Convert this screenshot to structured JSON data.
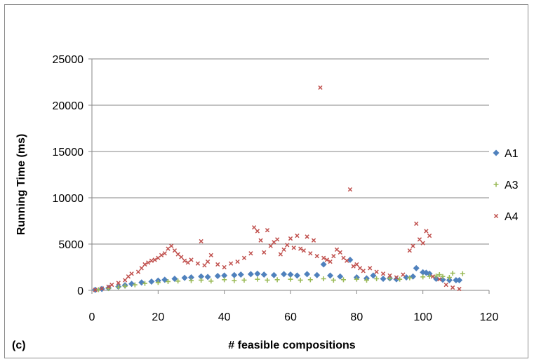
{
  "chart_data": {
    "type": "scatter",
    "panel_label": "(c)",
    "xlabel": "# feasible compositions",
    "ylabel": "Running Time (ms)",
    "xlim": [
      0,
      120
    ],
    "ylim": [
      0,
      25000
    ],
    "x_ticks": [
      "0",
      "20",
      "40",
      "60",
      "80",
      "100",
      "120"
    ],
    "y_ticks": [
      "0",
      "5000",
      "10000",
      "15000",
      "20000",
      "25000"
    ],
    "grid": "horizontal",
    "legend_position": "right",
    "series": [
      {
        "name": "A1",
        "marker": "diamond",
        "color": "#4f81bd",
        "points": [
          [
            1,
            60
          ],
          [
            3,
            150
          ],
          [
            5,
            250
          ],
          [
            8,
            400
          ],
          [
            10,
            550
          ],
          [
            12,
            700
          ],
          [
            15,
            850
          ],
          [
            18,
            950
          ],
          [
            20,
            1050
          ],
          [
            22,
            1150
          ],
          [
            25,
            1250
          ],
          [
            28,
            1350
          ],
          [
            30,
            1400
          ],
          [
            33,
            1500
          ],
          [
            35,
            1450
          ],
          [
            38,
            1550
          ],
          [
            40,
            1600
          ],
          [
            43,
            1650
          ],
          [
            45,
            1700
          ],
          [
            48,
            1750
          ],
          [
            50,
            1800
          ],
          [
            52,
            1700
          ],
          [
            55,
            1650
          ],
          [
            58,
            1750
          ],
          [
            60,
            1700
          ],
          [
            62,
            1600
          ],
          [
            65,
            1750
          ],
          [
            68,
            1650
          ],
          [
            70,
            2800
          ],
          [
            72,
            1600
          ],
          [
            75,
            1500
          ],
          [
            78,
            3300
          ],
          [
            80,
            1400
          ],
          [
            83,
            1300
          ],
          [
            85,
            1600
          ],
          [
            88,
            1250
          ],
          [
            90,
            1300
          ],
          [
            92,
            1200
          ],
          [
            95,
            1400
          ],
          [
            97,
            1500
          ],
          [
            98,
            2400
          ],
          [
            100,
            1950
          ],
          [
            101,
            1900
          ],
          [
            102,
            1800
          ],
          [
            104,
            1250
          ],
          [
            106,
            1150
          ],
          [
            108,
            1100
          ],
          [
            110,
            1100
          ],
          [
            111,
            1100
          ]
        ]
      },
      {
        "name": "A3",
        "marker": "plus",
        "color": "#9bbb59",
        "points": [
          [
            2,
            80
          ],
          [
            5,
            200
          ],
          [
            8,
            350
          ],
          [
            10,
            450
          ],
          [
            13,
            600
          ],
          [
            16,
            750
          ],
          [
            20,
            850
          ],
          [
            23,
            950
          ],
          [
            26,
            1000
          ],
          [
            30,
            1050
          ],
          [
            33,
            1100
          ],
          [
            36,
            1000
          ],
          [
            40,
            1150
          ],
          [
            43,
            1050
          ],
          [
            46,
            1100
          ],
          [
            50,
            1200
          ],
          [
            53,
            1100
          ],
          [
            56,
            1150
          ],
          [
            60,
            1200
          ],
          [
            63,
            1100
          ],
          [
            66,
            1150
          ],
          [
            70,
            1250
          ],
          [
            73,
            1100
          ],
          [
            76,
            1150
          ],
          [
            80,
            1200
          ],
          [
            83,
            1100
          ],
          [
            86,
            1250
          ],
          [
            90,
            1300
          ],
          [
            93,
            1200
          ],
          [
            96,
            1350
          ],
          [
            100,
            1450
          ],
          [
            102,
            1500
          ],
          [
            104,
            1550
          ],
          [
            105,
            1700
          ],
          [
            106,
            1500
          ],
          [
            108,
            1400
          ],
          [
            109,
            1850
          ],
          [
            112,
            1800
          ]
        ]
      },
      {
        "name": "A4",
        "marker": "x",
        "color": "#c0504d",
        "points": [
          [
            1,
            50
          ],
          [
            3,
            200
          ],
          [
            5,
            400
          ],
          [
            6,
            600
          ],
          [
            8,
            800
          ],
          [
            10,
            1100
          ],
          [
            11,
            1500
          ],
          [
            12,
            1800
          ],
          [
            14,
            2000
          ],
          [
            15,
            2400
          ],
          [
            16,
            2800
          ],
          [
            17,
            3000
          ],
          [
            18,
            3200
          ],
          [
            19,
            3300
          ],
          [
            20,
            3500
          ],
          [
            21,
            3800
          ],
          [
            22,
            4000
          ],
          [
            23,
            4500
          ],
          [
            24,
            4800
          ],
          [
            25,
            4300
          ],
          [
            26,
            3900
          ],
          [
            27,
            3600
          ],
          [
            28,
            3200
          ],
          [
            29,
            3000
          ],
          [
            30,
            3300
          ],
          [
            32,
            2900
          ],
          [
            33,
            5300
          ],
          [
            34,
            2700
          ],
          [
            35,
            3100
          ],
          [
            36,
            3800
          ],
          [
            38,
            2800
          ],
          [
            40,
            2500
          ],
          [
            42,
            2900
          ],
          [
            44,
            3100
          ],
          [
            46,
            3500
          ],
          [
            48,
            4000
          ],
          [
            49,
            6800
          ],
          [
            50,
            6400
          ],
          [
            51,
            5400
          ],
          [
            52,
            4100
          ],
          [
            53,
            6500
          ],
          [
            54,
            4800
          ],
          [
            55,
            5200
          ],
          [
            56,
            5500
          ],
          [
            57,
            3900
          ],
          [
            58,
            4400
          ],
          [
            59,
            4900
          ],
          [
            60,
            5600
          ],
          [
            61,
            4600
          ],
          [
            62,
            5900
          ],
          [
            63,
            4500
          ],
          [
            64,
            4300
          ],
          [
            65,
            5800
          ],
          [
            66,
            4000
          ],
          [
            67,
            5400
          ],
          [
            68,
            3700
          ],
          [
            69,
            21900
          ],
          [
            70,
            3500
          ],
          [
            71,
            3300
          ],
          [
            72,
            3100
          ],
          [
            73,
            3700
          ],
          [
            74,
            4400
          ],
          [
            75,
            4100
          ],
          [
            76,
            3500
          ],
          [
            77,
            3200
          ],
          [
            78,
            10900
          ],
          [
            79,
            2600
          ],
          [
            80,
            2800
          ],
          [
            81,
            2400
          ],
          [
            82,
            2100
          ],
          [
            84,
            2400
          ],
          [
            86,
            2000
          ],
          [
            88,
            1800
          ],
          [
            90,
            1600
          ],
          [
            92,
            1400
          ],
          [
            94,
            1700
          ],
          [
            96,
            4300
          ],
          [
            97,
            4800
          ],
          [
            98,
            7200
          ],
          [
            99,
            5500
          ],
          [
            100,
            5100
          ],
          [
            101,
            6400
          ],
          [
            102,
            5900
          ],
          [
            103,
            1500
          ],
          [
            105,
            1200
          ],
          [
            107,
            600
          ],
          [
            109,
            300
          ],
          [
            111,
            150
          ]
        ]
      }
    ]
  }
}
